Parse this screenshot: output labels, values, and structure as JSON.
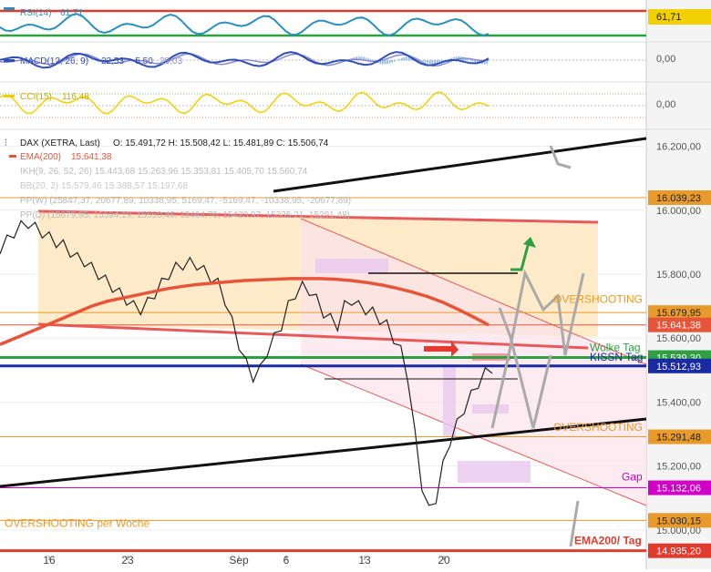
{
  "colors": {
    "rsi": "#2a8fc0",
    "macd": "#2f4fb5",
    "signal": "#8a8ad0",
    "cci": "#f2d000",
    "price": "#222222",
    "ema": "#e8543a",
    "ref_red": "#e23b2e",
    "ref_green": "#2ea043",
    "ref_blue": "#1a2aa0",
    "ref_orange": "#e89a2a",
    "ref_magenta": "#d000c8",
    "zone_fill": "#ffe8c0",
    "channel": "#e85a5a",
    "gap_fill": "#e8c8f0",
    "arrow_gray": "#999999",
    "arrow_green": "#2ea043"
  },
  "panels": {
    "rsi": {
      "label": "RSI(14)",
      "value": "61,71",
      "axis_label": "61,71"
    },
    "macd": {
      "label": "MACD(12, 26, 9)",
      "v1": "22,53",
      "v2": "-5,50",
      "v3": "28,03",
      "axis_label": "0,00"
    },
    "cci": {
      "label": "CCI(15)",
      "value": "116,48",
      "axis_label": "0,00"
    }
  },
  "legend": {
    "dax": "DAX (XETRA, Last)",
    "ohlc": "O: 15.491,72  H: 15.508,42  L: 15.481,89  C: 15.506,74",
    "ema": "EMA(200)",
    "ema_value": "15.641,38",
    "ikh": "IKH(9, 26, 52, 26)  15.443,68  15.263,96  15.353,81  15.405,70  15.560,74",
    "bb": "BB(20, 2)  15.579,46  15.388,57  15.197,68",
    "ppw": "PP(W)  (25847,37, 20677,89, 10338,95, 5169,47, -5169,47, -10338,95, -20677,89)",
    "ppd": "PP(D)  (15679,95, 15594,19, 15550,46, 15464,70, 15420,97, 15335,21, 15291,48)"
  },
  "chart_data": {
    "type": "line",
    "title": "DAX (XETRA, Last)",
    "y_axis": {
      "ylim": [
        14920,
        16230
      ],
      "ticks": [
        "16.200,00",
        "16.000,00",
        "15.800,00",
        "15.600,00",
        "15.400,00",
        "15.200,00",
        "15.000,00"
      ]
    },
    "x_axis": {
      "ticks": [
        "16",
        "23",
        "Sep",
        "6",
        "13",
        "20"
      ]
    },
    "price_series": [
      15880,
      15905,
      15930,
      15950,
      15960,
      15945,
      15930,
      15915,
      15900,
      15890,
      15870,
      15850,
      15840,
      15820,
      15800,
      15780,
      15760,
      15740,
      15720,
      15700,
      15690,
      15710,
      15740,
      15770,
      15800,
      15820,
      15830,
      15835,
      15830,
      15810,
      15790,
      15770,
      15720,
      15650,
      15580,
      15520,
      15480,
      15500,
      15560,
      15600,
      15640,
      15700,
      15740,
      15760,
      15750,
      15720,
      15680,
      15660,
      15640,
      15700,
      15720,
      15700,
      15690,
      15680,
      15660,
      15640,
      15600,
      15560,
      15480,
      15300,
      15140,
      15060,
      15100,
      15200,
      15280,
      15330,
      15380,
      15420,
      15460,
      15490,
      15507
    ],
    "ema200_series": [
      15580,
      15600,
      15620,
      15640,
      15660,
      15680,
      15700,
      15715,
      15725,
      15735,
      15745,
      15755,
      15762,
      15768,
      15772,
      15776,
      15780,
      15782,
      15784,
      15786,
      15786,
      15786,
      15784,
      15780,
      15774,
      15766,
      15756,
      15744,
      15730,
      15712,
      15690,
      15666,
      15641
    ],
    "levels": [
      {
        "label": "16.039,23",
        "value": 16039.23,
        "color": "#e89a2a"
      },
      {
        "label": "15.679,95",
        "value": 15679.95,
        "color": "#e89a2a"
      },
      {
        "label": "15.641,38",
        "value": 15641.38,
        "color": "#e8543a"
      },
      {
        "label": "15.539,30",
        "value": 15539.3,
        "color": "#2ea043"
      },
      {
        "label": "15.512,93",
        "value": 15512.93,
        "color": "#1a2aa0"
      },
      {
        "label": "15.291,48",
        "value": 15291.48,
        "color": "#e89a2a"
      },
      {
        "label": "15.132,06",
        "value": 15132.06,
        "color": "#d000c8"
      },
      {
        "label": "15.030,15",
        "value": 15030.15,
        "color": "#e89a2a"
      },
      {
        "label": "14.935,20",
        "value": 14935.2,
        "color": "#e23b2e"
      }
    ],
    "annotations": [
      {
        "text": "OVERSHOOTING",
        "value": 15710,
        "color": "#e89a2a"
      },
      {
        "text": "Wolke Tag",
        "value": 15560,
        "color": "#2ea043"
      },
      {
        "text": "KISSN Tag",
        "value": 15530,
        "color": "#1a2aa0"
      },
      {
        "text": "OVERSHOOTING",
        "value": 15310,
        "color": "#e89a2a"
      },
      {
        "text": "Gap",
        "value": 15155,
        "color": "#d000c8"
      },
      {
        "text": "OVERSHOOTING per Woche",
        "value": 15010,
        "color": "#e89a2a"
      },
      {
        "text": "EMA200/ Tag",
        "value": 14955,
        "color": "#e23b2e"
      }
    ]
  }
}
